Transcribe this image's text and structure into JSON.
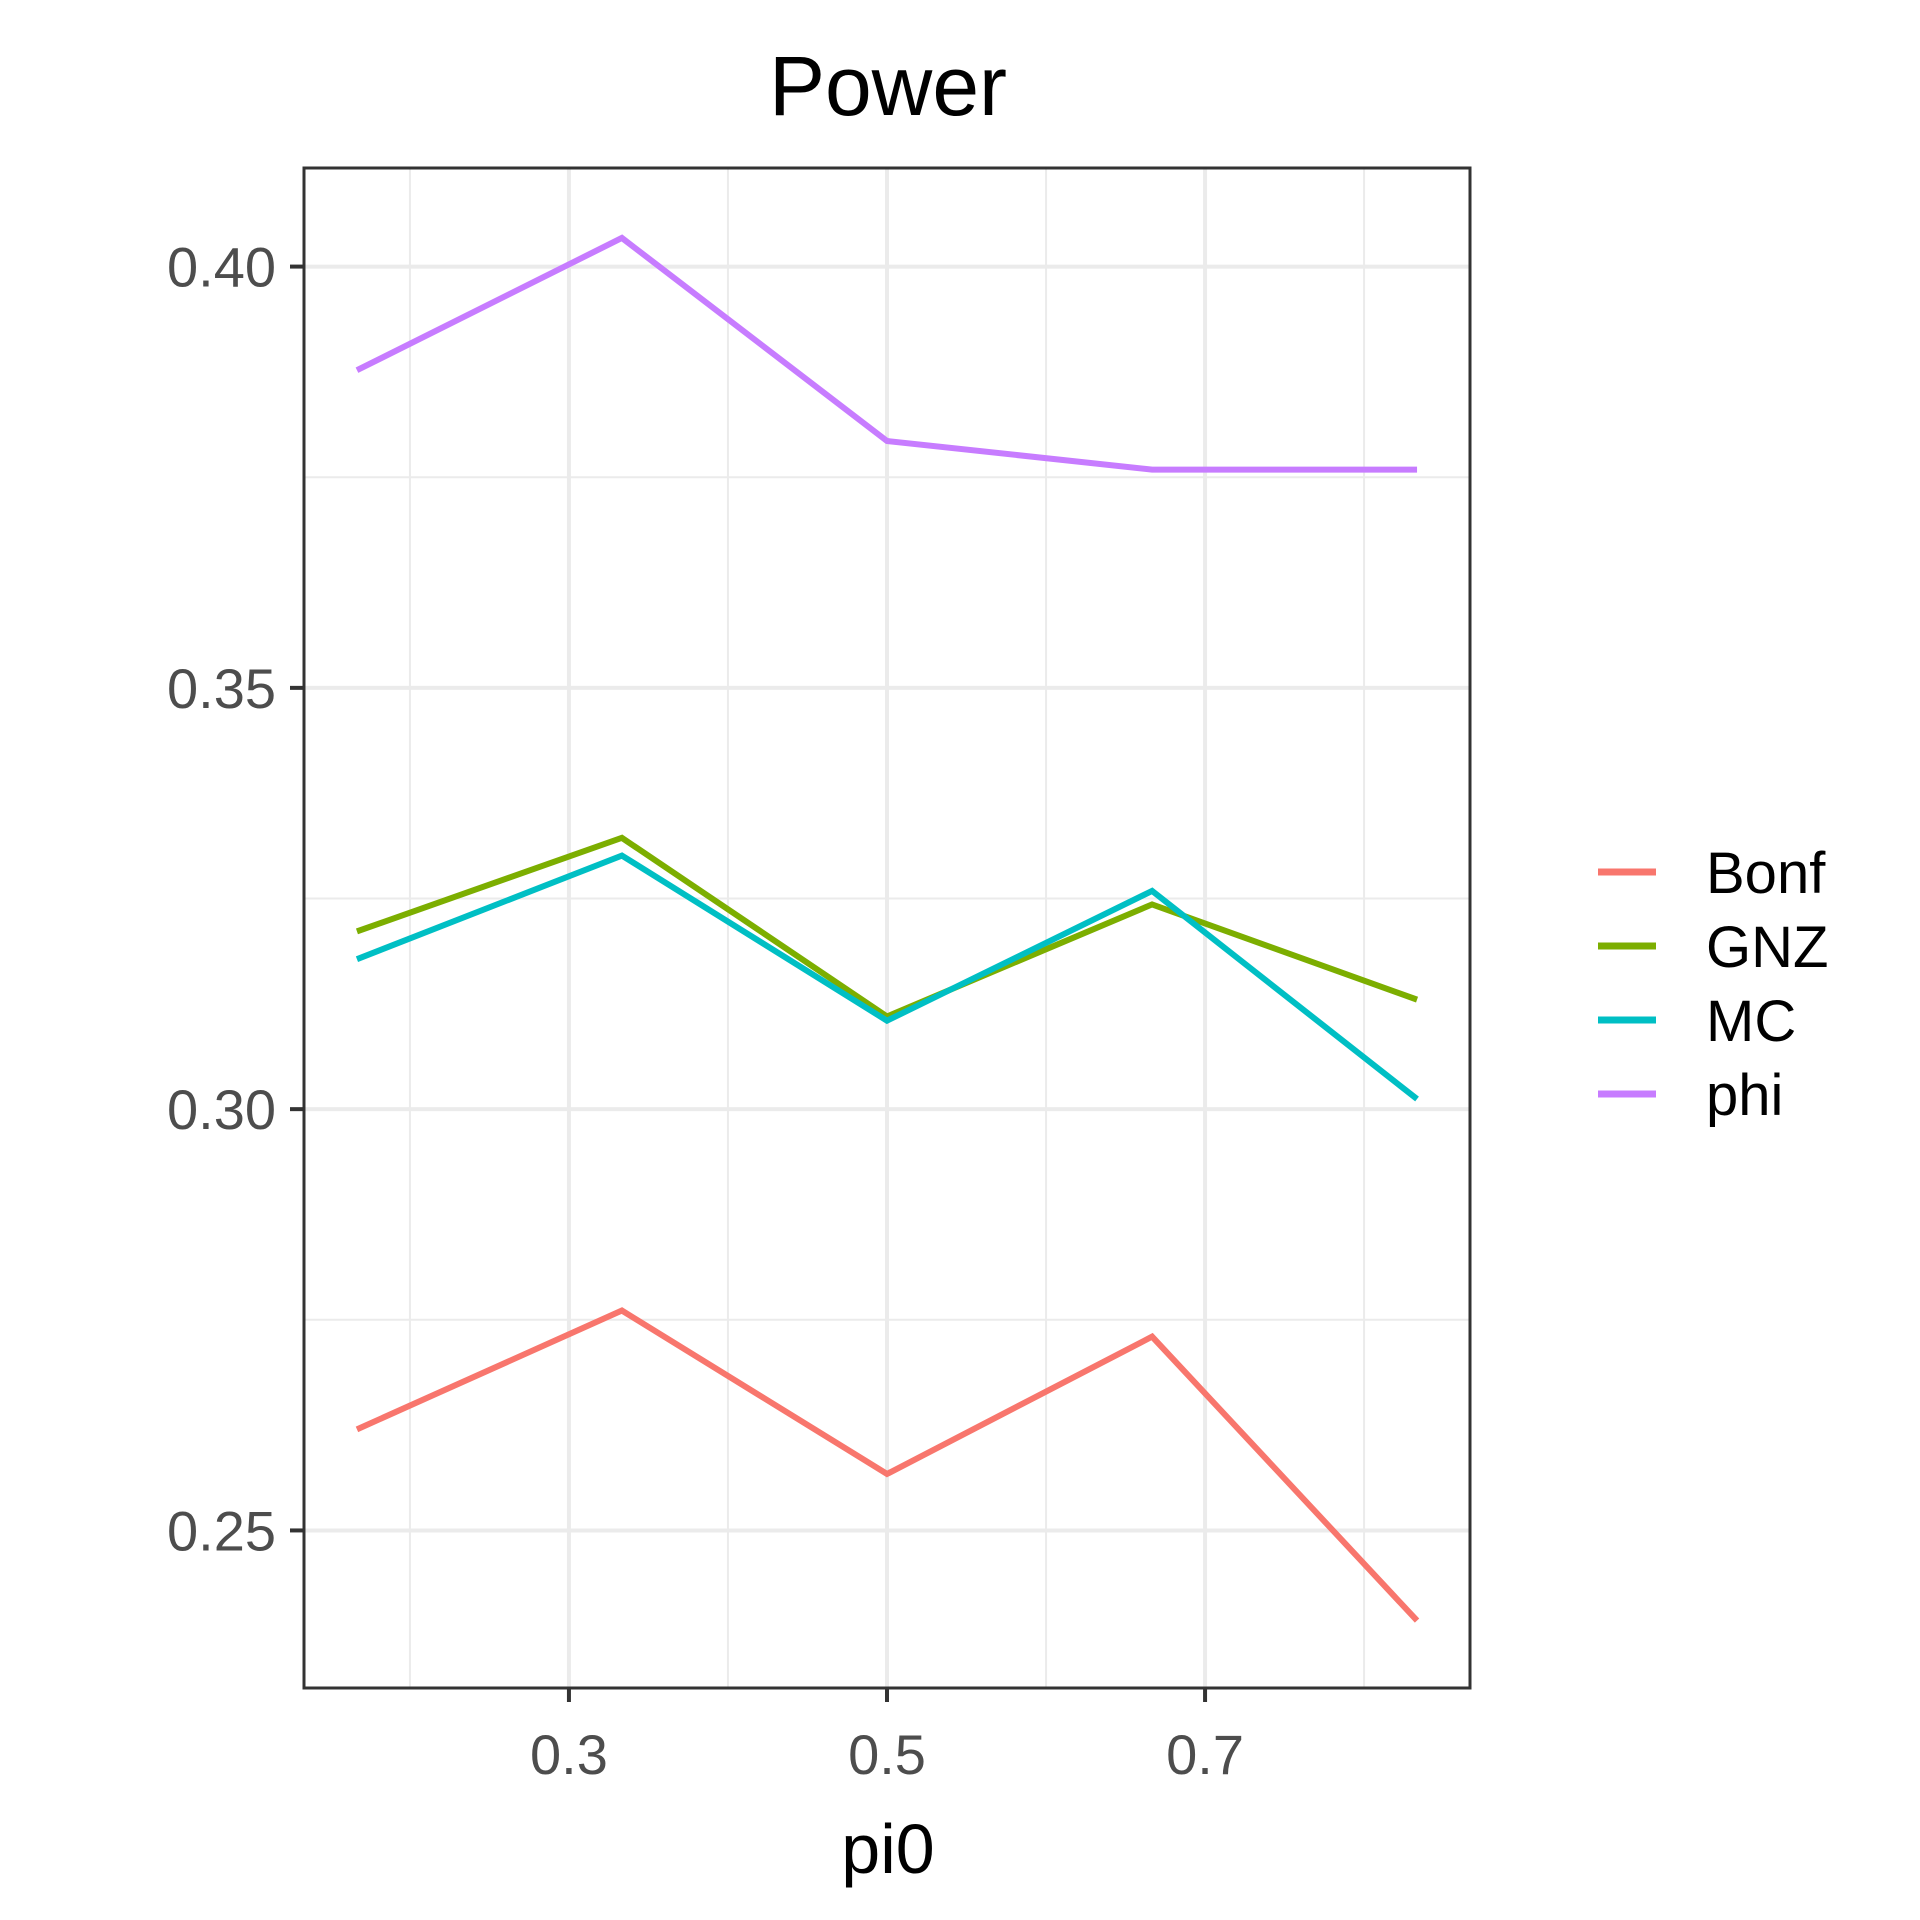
{
  "chart_data": {
    "type": "line",
    "title": "Power",
    "xlabel": "pi0",
    "ylabel": "",
    "x": [
      0.1667,
      0.3333,
      0.5,
      0.6667,
      0.8333
    ],
    "xlim": [
      0.1334,
      0.8666
    ],
    "ylim": [
      0.2313,
      0.4117
    ],
    "x_ticks": [
      0.3,
      0.5,
      0.7
    ],
    "x_tick_labels": [
      "0.3",
      "0.5",
      "0.7"
    ],
    "x_minor_ticks": [
      0.2,
      0.4,
      0.6,
      0.8
    ],
    "y_ticks": [
      0.25,
      0.3,
      0.35,
      0.4
    ],
    "y_tick_labels": [
      "0.25",
      "0.30",
      "0.35",
      "0.40"
    ],
    "y_minor_ticks": [
      0.275,
      0.325,
      0.375
    ],
    "grid": true,
    "legend_position": "right",
    "series": [
      {
        "name": "Bonf",
        "color": "#F8766D",
        "values": [
          0.262,
          0.2761,
          0.2567,
          0.273,
          0.2393
        ]
      },
      {
        "name": "GNZ",
        "color": "#7CAE00",
        "values": [
          0.3211,
          0.3322,
          0.311,
          0.3243,
          0.313
        ]
      },
      {
        "name": "MC",
        "color": "#00BFC4",
        "values": [
          0.3178,
          0.3301,
          0.3105,
          0.3259,
          0.3012
        ]
      },
      {
        "name": "phi",
        "color": "#C77CFF",
        "values": [
          0.3877,
          0.4034,
          0.3793,
          0.3759,
          0.3759
        ]
      }
    ]
  }
}
